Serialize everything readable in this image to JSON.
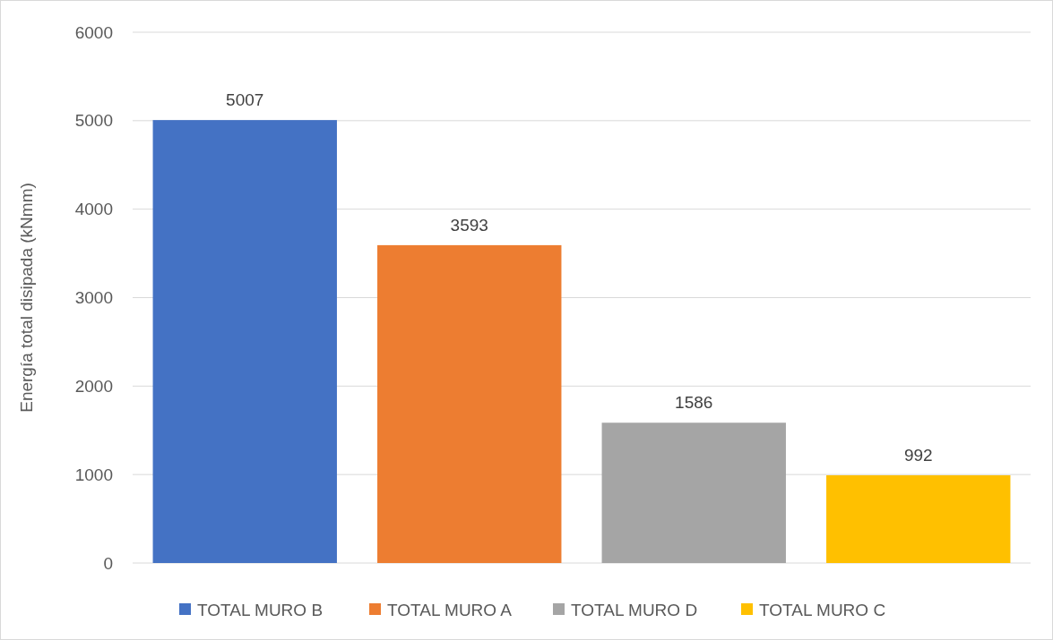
{
  "chart_data": {
    "type": "bar",
    "ylabel": "Energía total disipada (kNmm)",
    "categories": [
      null
    ],
    "series": [
      {
        "name": "TOTAL MURO B",
        "color": "#4472c4",
        "values": [
          5007
        ]
      },
      {
        "name": "TOTAL MURO A",
        "color": "#ed7d31",
        "values": [
          3593
        ]
      },
      {
        "name": "TOTAL MURO D",
        "color": "#a5a5a5",
        "values": [
          1586
        ]
      },
      {
        "name": "TOTAL MURO C",
        "color": "#ffc000",
        "values": [
          992
        ]
      }
    ],
    "ylim": [
      0,
      6000
    ],
    "yticks": [
      0,
      1000,
      2000,
      3000,
      4000,
      5000,
      6000
    ],
    "grid": "y",
    "legend": "bottom",
    "data_labels": true
  }
}
